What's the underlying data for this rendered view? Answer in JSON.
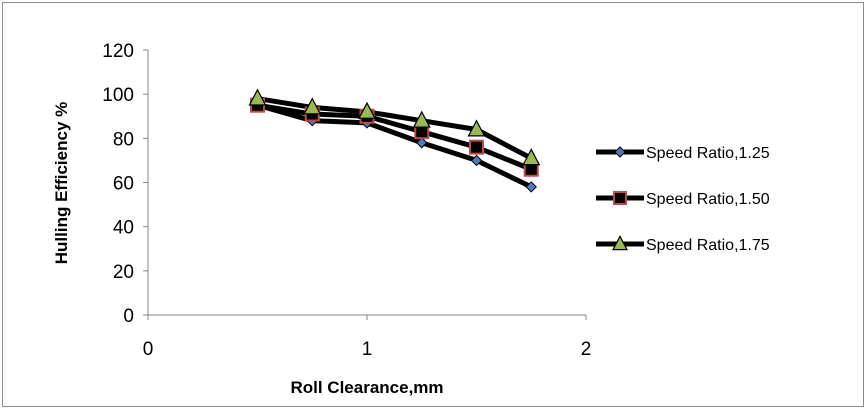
{
  "chart_data": {
    "type": "line",
    "xlabel": "Roll Clearance,mm",
    "ylabel": "Hulling Efficiency %",
    "xlim": [
      0,
      2
    ],
    "ylim": [
      0,
      120
    ],
    "x_ticks": [
      0,
      1,
      2
    ],
    "y_ticks": [
      0,
      20,
      40,
      60,
      80,
      100,
      120
    ],
    "grid": false,
    "legend_position": "right",
    "x": [
      0.5,
      0.75,
      1.0,
      1.25,
      1.5,
      1.75
    ],
    "series": [
      {
        "name": "Speed Ratio,1.25",
        "marker": "diamond",
        "marker_color": "#4a7ebb",
        "line_color": "#000000",
        "values": [
          95,
          88,
          87,
          78,
          70,
          58
        ]
      },
      {
        "name": "Speed Ratio,1.50",
        "marker": "square",
        "marker_color": "#be4b48",
        "line_color": "#000000",
        "values": [
          95,
          91,
          90,
          83,
          76,
          66
        ]
      },
      {
        "name": "Speed Ratio,1.75",
        "marker": "triangle",
        "marker_color": "#98b954",
        "line_color": "#000000",
        "values": [
          98,
          94,
          92,
          88,
          84,
          71
        ]
      }
    ]
  }
}
